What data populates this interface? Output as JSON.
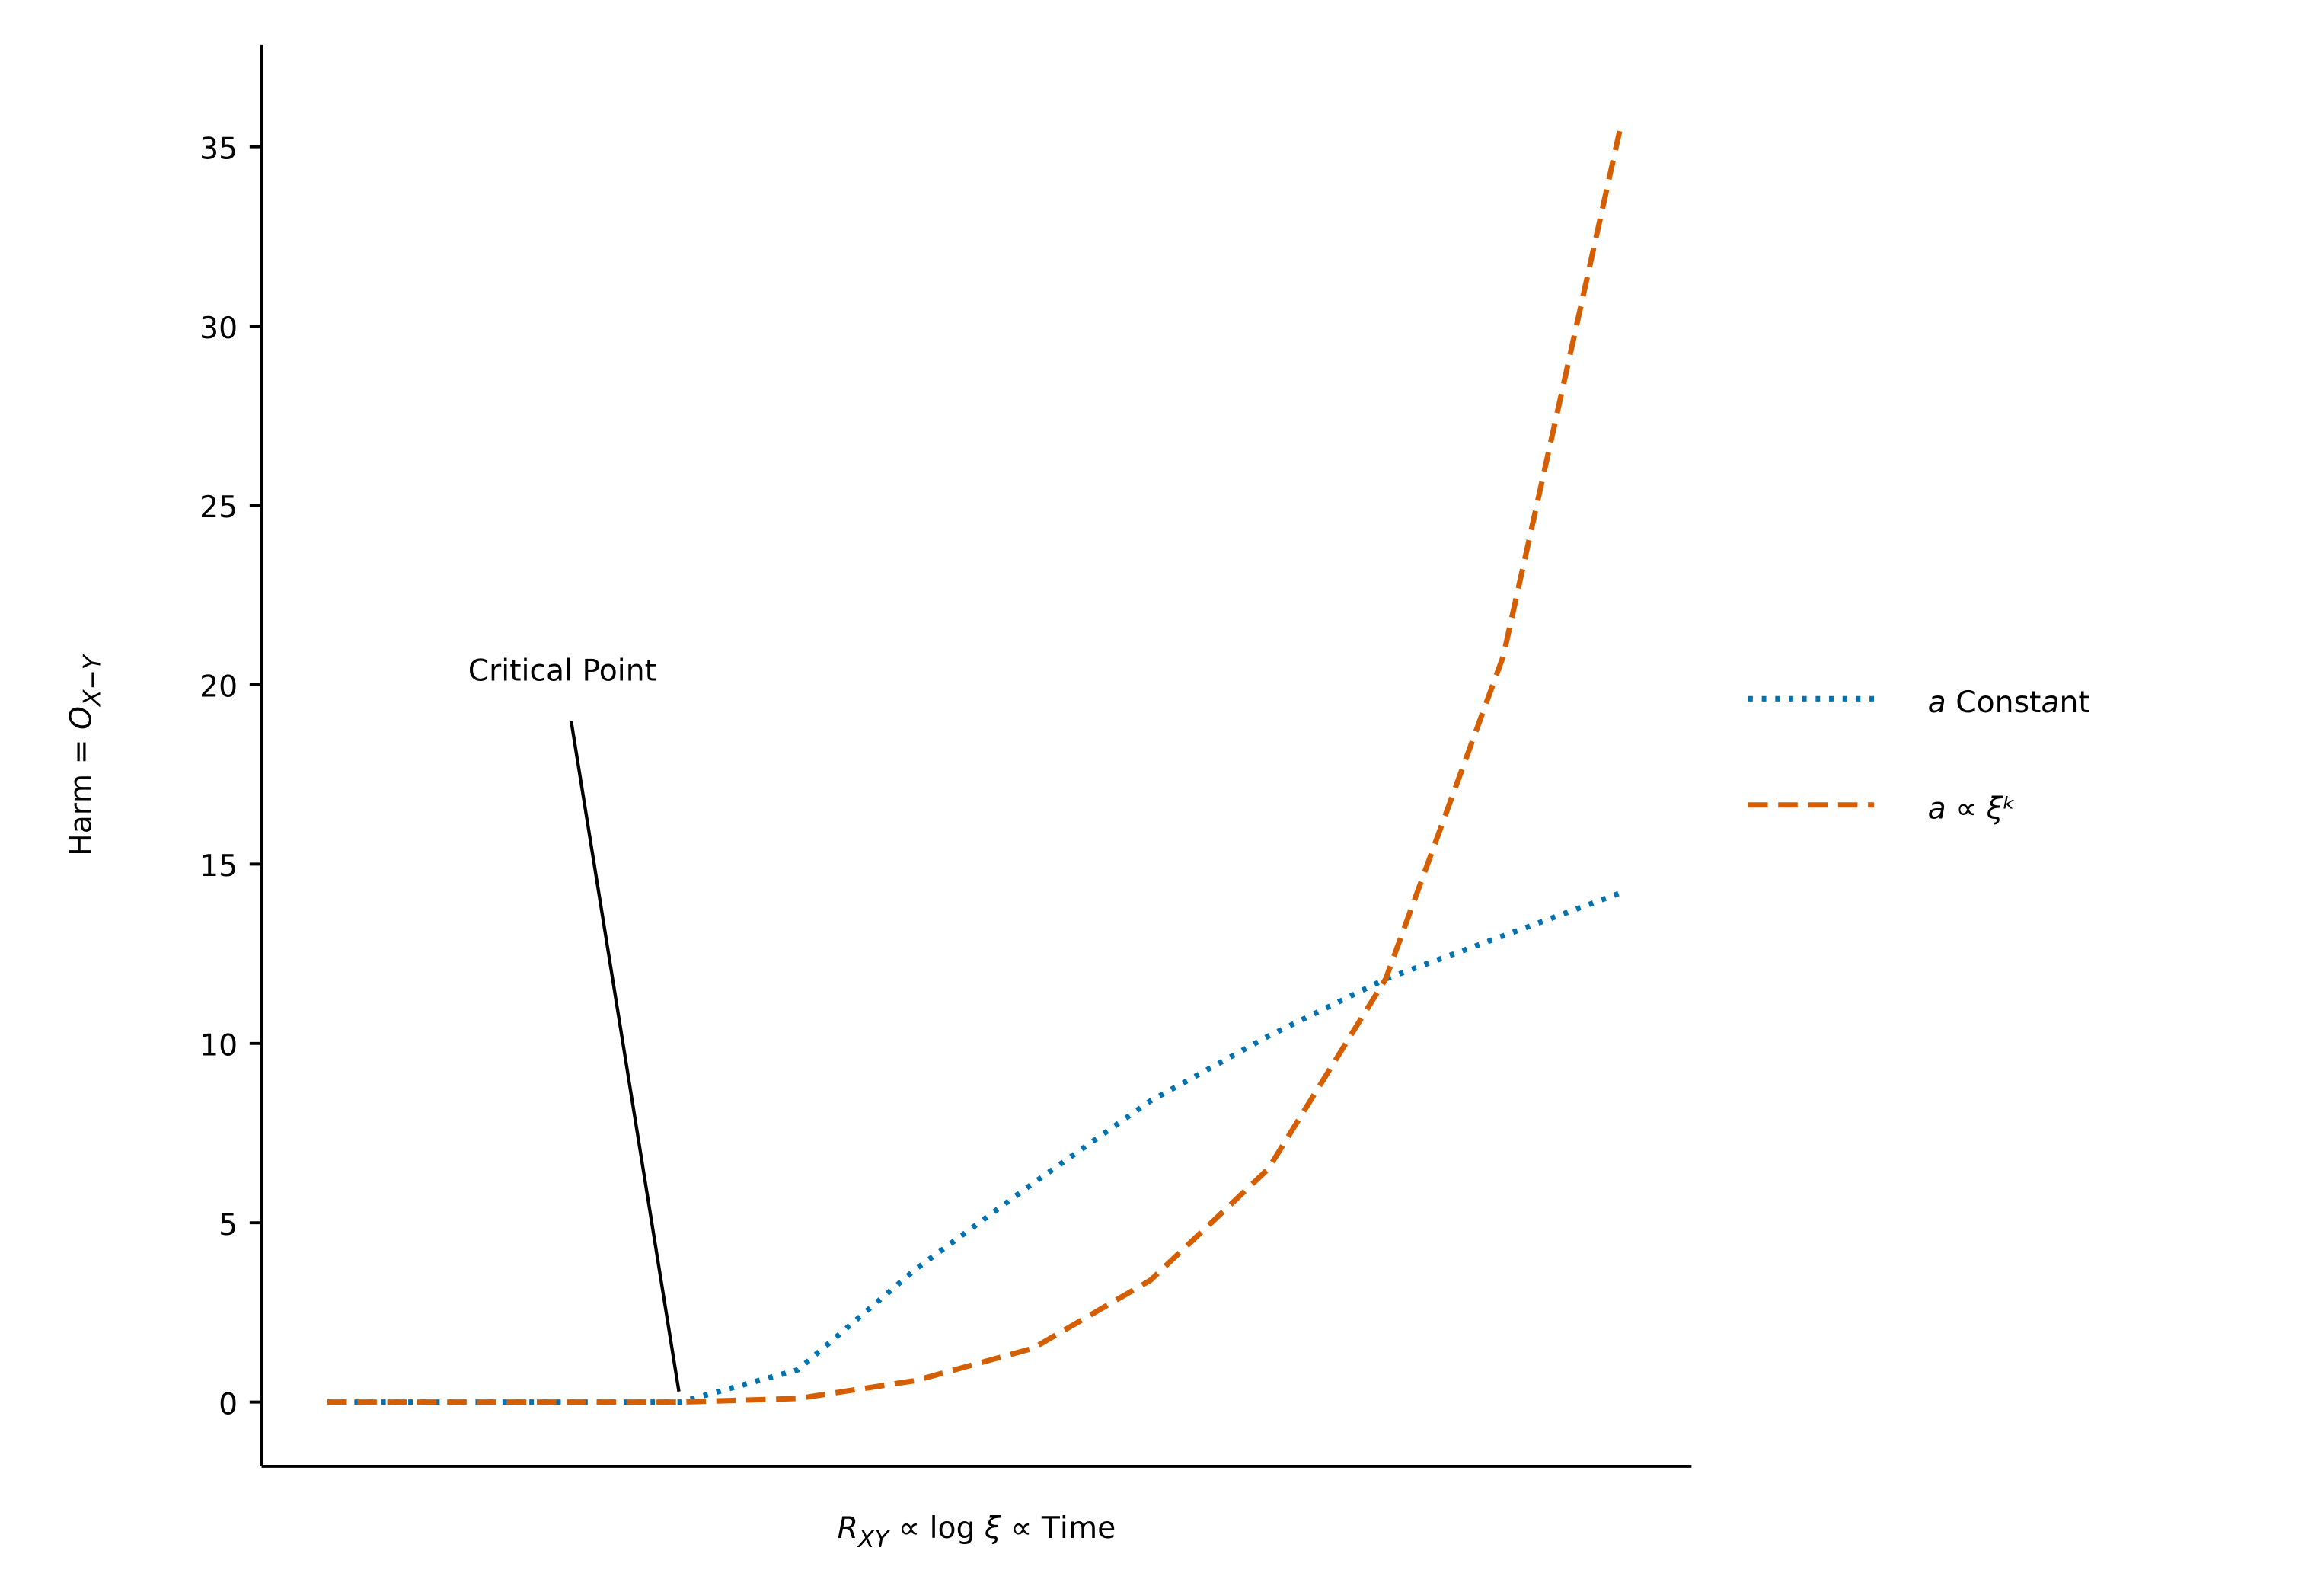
{
  "chart_data": {
    "type": "line",
    "x_label": "RXY ∝ log ξ ∝ Time",
    "y_label": "Harm = OX−Y",
    "annotation": "Critical Point",
    "x": [
      0,
      1,
      2,
      3,
      4,
      5,
      6,
      7,
      8,
      9,
      10,
      11
    ],
    "series": [
      {
        "name": "a Constant",
        "color": "#0072b2",
        "style": "dotted",
        "values": [
          0,
          0,
          0,
          0,
          0.9,
          3.7,
          6.1,
          8.4,
          10.2,
          11.8,
          13.0,
          14.2
        ]
      },
      {
        "name": "a ∝ ξᵏ",
        "color": "#d55e00",
        "style": "dashed",
        "values": [
          0,
          0,
          0,
          0,
          0.1,
          0.6,
          1.5,
          3.4,
          6.5,
          11.8,
          20.8,
          35.6
        ]
      }
    ],
    "xlim": [
      -0.56,
      11.6
    ],
    "ylim": [
      -1.79,
      37.84
    ],
    "yticks": [
      0,
      5,
      10,
      15,
      20,
      25,
      30,
      35
    ],
    "legend": "outside right"
  }
}
